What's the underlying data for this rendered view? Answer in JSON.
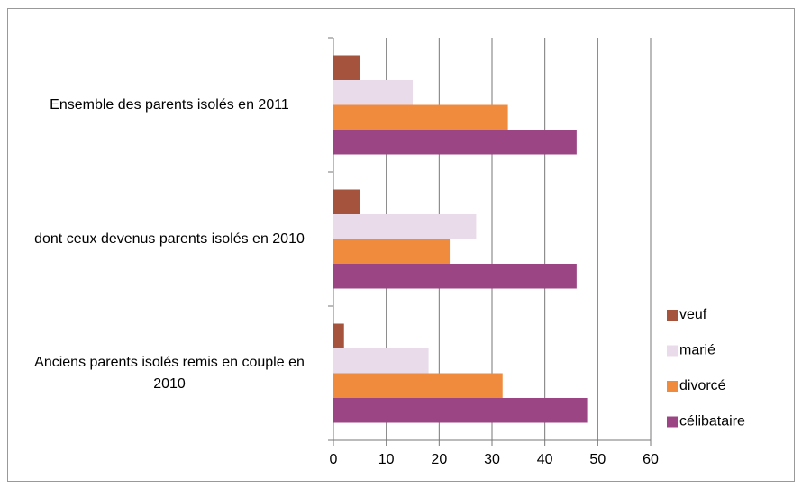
{
  "chart_data": {
    "type": "bar",
    "orientation": "horizontal",
    "categories": [
      "Ensemble des parents isolés en 2011",
      "dont ceux devenus parents isolés en 2010",
      "Anciens parents isolés remis en couple en 2010"
    ],
    "series": [
      {
        "name": "veuf",
        "color": "#a5533c",
        "values": [
          5,
          5,
          2
        ]
      },
      {
        "name": "marié",
        "color": "#e9dbe9",
        "values": [
          15,
          27,
          18
        ]
      },
      {
        "name": "divorcé",
        "color": "#f08a3c",
        "values": [
          33,
          22,
          32
        ]
      },
      {
        "name": "célibataire",
        "color": "#9c4585",
        "values": [
          46,
          46,
          48
        ]
      }
    ],
    "xlim": [
      0,
      60
    ],
    "xticks": [
      0,
      10,
      20,
      30,
      40,
      50,
      60
    ],
    "grid": true,
    "legend": "right"
  }
}
